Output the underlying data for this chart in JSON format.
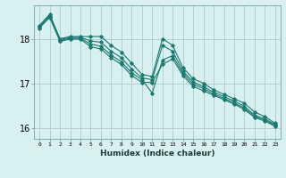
{
  "title": "",
  "xlabel": "Humidex (Indice chaleur)",
  "bg_color": "#d8f0f0",
  "grid_color": "#b0d0d0",
  "line_color": "#1a7a6e",
  "xlim": [
    -0.5,
    23.5
  ],
  "ylim": [
    15.75,
    18.75
  ],
  "yticks": [
    16,
    17,
    18
  ],
  "xtick_labels": [
    "0",
    "1",
    "2",
    "3",
    "4",
    "5",
    "6",
    "7",
    "8",
    "9",
    "10",
    "11",
    "12",
    "13",
    "14",
    "15",
    "16",
    "17",
    "18",
    "19",
    "20",
    "21",
    "22",
    "23"
  ],
  "series": [
    [
      18.3,
      18.55,
      18.0,
      18.05,
      18.05,
      18.05,
      18.05,
      17.85,
      17.7,
      17.45,
      17.2,
      17.15,
      18.0,
      17.85,
      17.35,
      17.1,
      17.0,
      16.85,
      16.75,
      16.65,
      16.55,
      16.35,
      16.25,
      16.1
    ],
    [
      18.28,
      18.52,
      17.98,
      18.03,
      18.03,
      17.95,
      17.92,
      17.72,
      17.57,
      17.32,
      17.12,
      17.08,
      17.85,
      17.72,
      17.27,
      17.03,
      16.92,
      16.8,
      16.7,
      16.6,
      16.48,
      16.28,
      16.2,
      16.07
    ],
    [
      18.26,
      18.5,
      17.96,
      18.01,
      18.01,
      17.88,
      17.83,
      17.63,
      17.48,
      17.23,
      17.08,
      16.78,
      17.52,
      17.62,
      17.22,
      16.98,
      16.88,
      16.76,
      16.66,
      16.56,
      16.44,
      16.25,
      16.17,
      16.05
    ],
    [
      18.24,
      18.48,
      17.94,
      17.99,
      17.99,
      17.82,
      17.77,
      17.57,
      17.42,
      17.17,
      17.02,
      17.02,
      17.42,
      17.55,
      17.17,
      16.93,
      16.83,
      16.73,
      16.63,
      16.53,
      16.41,
      16.23,
      16.15,
      16.03
    ]
  ]
}
